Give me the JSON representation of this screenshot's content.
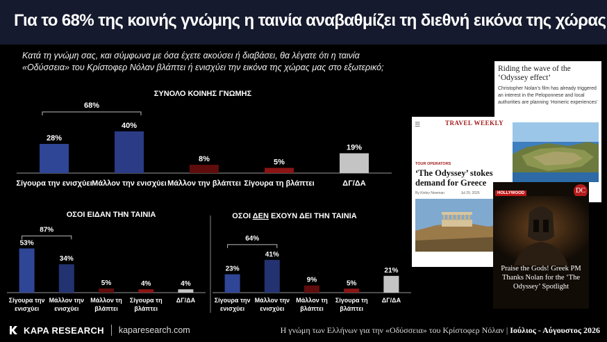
{
  "header": {
    "title": "Για το 68% της κοινής γνώμης η ταινία αναβαθμίζει τη διεθνή εικόνα της χώρας"
  },
  "question": {
    "line1": "Κατά τη γνώμη σας, και σύμφωνα με όσα έχετε ακούσει ή διαβάσει, θα λέγατε ότι η ταινία",
    "line2": "«Οδύσσεια» του Κρίστοφερ Νόλαν βλάπτει ή ενισχύει την εικόνα της χώρας μας στο εξωτερικό;"
  },
  "colors": {
    "dark_blue": "#24306d",
    "blue": "#34489a",
    "dark_red": "#6a0d0d",
    "red": "#8a1616",
    "grey": "#c8c8c8"
  },
  "chart_data": [
    {
      "type": "bar",
      "title": "ΣΥΝΟΛΟ ΚΟΙΝΗΣ ΓΝΩΜΗΣ",
      "categories": [
        "Σίγουρα την ενισχύει",
        "Μάλλον την ενισχύει",
        "Μάλλον την βλάπτει",
        "Σίγουρα τη βλάπτει",
        "ΔΓ/ΔΑ"
      ],
      "values": [
        28,
        40,
        8,
        5,
        19
      ],
      "value_labels": [
        "28%",
        "40%",
        "8%",
        "5%",
        "19%"
      ],
      "colors": [
        "#2f4595",
        "#2b3b86",
        "#5e0c0c",
        "#8b1414",
        "#c4c4c4"
      ],
      "bracket_label": "68%",
      "bracket_span": [
        0,
        1
      ]
    },
    {
      "type": "bar",
      "title": "ΟΣΟΙ ΕΙΔΑΝ ΤΗΝ ΤΑΙΝΙΑ",
      "categories": [
        "Σίγουρα την ενισχύει",
        "Μάλλον την ενισχύει",
        "Μάλλον τη βλάπτει",
        "Σίγουρα τη βλάπτει",
        "ΔΓ/ΔΑ"
      ],
      "category_lines": [
        [
          "Σίγουρα την",
          "ενισχύει"
        ],
        [
          "Μάλλον την",
          "ενισχύει"
        ],
        [
          "Μάλλον τη",
          "βλάπτει"
        ],
        [
          "Σίγουρα τη",
          "βλάπτει"
        ],
        [
          "ΔΓ/ΔΑ"
        ]
      ],
      "values": [
        53,
        34,
        5,
        4,
        4
      ],
      "value_labels": [
        "53%",
        "34%",
        "5%",
        "4%",
        "4%"
      ],
      "colors": [
        "#2f4595",
        "#233270",
        "#5e0c0c",
        "#8b1414",
        "#c4c4c4"
      ],
      "bracket_label": "87%",
      "bracket_span": [
        0,
        1
      ]
    },
    {
      "type": "bar",
      "title_parts": [
        "ΟΣΟΙ ",
        "ΔΕΝ",
        " ΕΧΟΥΝ ΔΕΙ ΤΗΝ ΤΑΙΝΙΑ"
      ],
      "categories": [
        "Σίγουρα την ενισχύει",
        "Μάλλον την ενισχύει",
        "Μάλλον τη βλάπτει",
        "Σίγουρα τη βλάπτει",
        "ΔΓ/ΔΑ"
      ],
      "category_lines": [
        [
          "Σίγουρα την",
          "ενισχύει"
        ],
        [
          "Μάλλον την",
          "ενισχύει"
        ],
        [
          "Μάλλον τη",
          "βλάπτει"
        ],
        [
          "Σίγουρα τη",
          "βλάπτει"
        ],
        [
          "ΔΓ/ΔΑ"
        ]
      ],
      "values": [
        23,
        41,
        9,
        5,
        21
      ],
      "value_labels": [
        "23%",
        "41%",
        "9%",
        "5%",
        "21%"
      ],
      "colors": [
        "#2f4595",
        "#233270",
        "#5e0c0c",
        "#8b1414",
        "#c4c4c4"
      ],
      "bracket_label": "64%",
      "bracket_span": [
        0,
        1
      ]
    }
  ],
  "clippings": {
    "clip1": {
      "headline": "Riding the wave of the ‘Odyssey effect’",
      "body": "Christopher Nolan’s film has already triggered an interest in the Peloponnese and local authorities are planning ‘Homeric experiences’"
    },
    "clip2": {
      "masthead": "TRAVEL WEEKLY",
      "section": "TOUR OPERATORS",
      "headline": "‘The Odyssey’ stokes demand for Greece",
      "byline": "By Kinley Newman",
      "date": "Jul 29, 2026"
    },
    "clip3": {
      "tag": "HOLLYWOOD",
      "badge": "DC",
      "headline": "Praise the Gods! Greek PM Thanks Nolan for the ‘The Odyssey’ Spotlight"
    }
  },
  "footer": {
    "logo": "KAPA RESEARCH",
    "url": "kaparesearch.com",
    "caption": "Η γνώμη των Ελλήνων για την «Οδύσσεια» του Κρίστοφερ Νόλαν |",
    "date": "Ιούλιος - Αύγουστος 2026"
  }
}
